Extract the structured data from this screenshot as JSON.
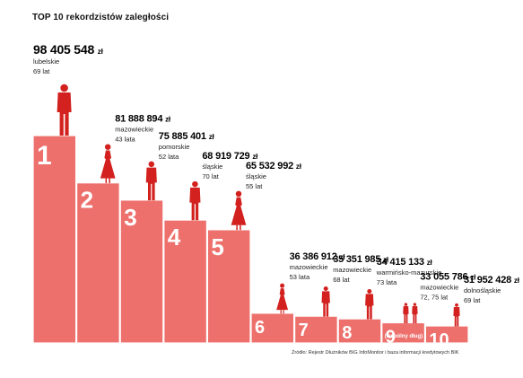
{
  "colors": {
    "bar": "#ed706c",
    "bar_edge": "#c9504c",
    "figure": "#d2211e"
  },
  "header": {
    "title": "TOP 10 rekordzistów zaległości"
  },
  "footer": {
    "source": "Źródło: Rejestr Dłużników BIG InfoMonitor i baza informacji kredytowych BIK"
  },
  "chart_data": {
    "type": "bar",
    "title": "TOP 10 rekordzistów zaległości",
    "unit": "zł",
    "categories": [
      "1",
      "2",
      "3",
      "4",
      "5",
      "6",
      "7",
      "8",
      "9",
      "10"
    ],
    "values": [
      98405548,
      81888894,
      75885401,
      68919729,
      65532992,
      36386912,
      35351985,
      34415133,
      33055786,
      31952428
    ],
    "amount_labels": [
      "98 405 548",
      "81 888 894",
      "75 885 401",
      "68 919 729",
      "65 532 992",
      "36 386 912",
      "35 351 985",
      "34 415 133",
      "33 055 786",
      "31 952 428"
    ],
    "regions": [
      "lubelskie",
      "mazowieckie",
      "pomorskie",
      "śląskie",
      "śląskie",
      "mazowieckie",
      "mazowieckie",
      "warmińsko-mazurskie",
      "mazowieckie",
      "dolnośląskie"
    ],
    "ages": [
      "69 lat",
      "43 lata",
      "52 lata",
      "70 lat",
      "55 lat",
      "53 lata",
      "68 lat",
      "73 lata",
      "72, 75 lat",
      "69 lat"
    ],
    "figures": [
      "man",
      "woman",
      "man",
      "man",
      "woman",
      "woman",
      "man",
      "man",
      "man,man",
      "man"
    ],
    "annotations": [
      {
        "category": "9",
        "text": "(wspólny dług)"
      }
    ]
  }
}
